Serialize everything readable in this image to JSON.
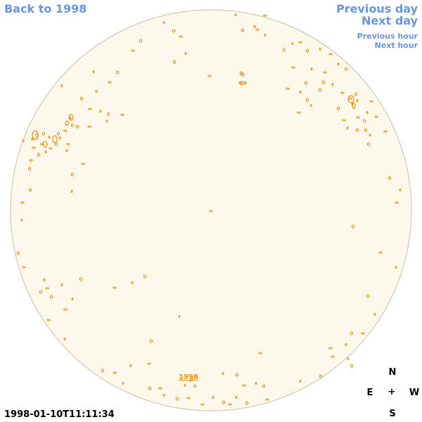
{
  "nav": {
    "back": "Back to 1998",
    "previous_day": "Previous day",
    "next_day": "Next day",
    "previous_hour": "Previous hour",
    "next_hour": "Next hour"
  },
  "disk": {
    "year_label": "1998",
    "fill_color": "#fdf8ec",
    "contour_color": "#e8900c",
    "limb_color": "#c8c0a8"
  },
  "compass": {
    "north": "N",
    "east": "E",
    "west": "W",
    "south": "S",
    "center": "+"
  },
  "timestamp": "1998-01-10T11:11:34"
}
